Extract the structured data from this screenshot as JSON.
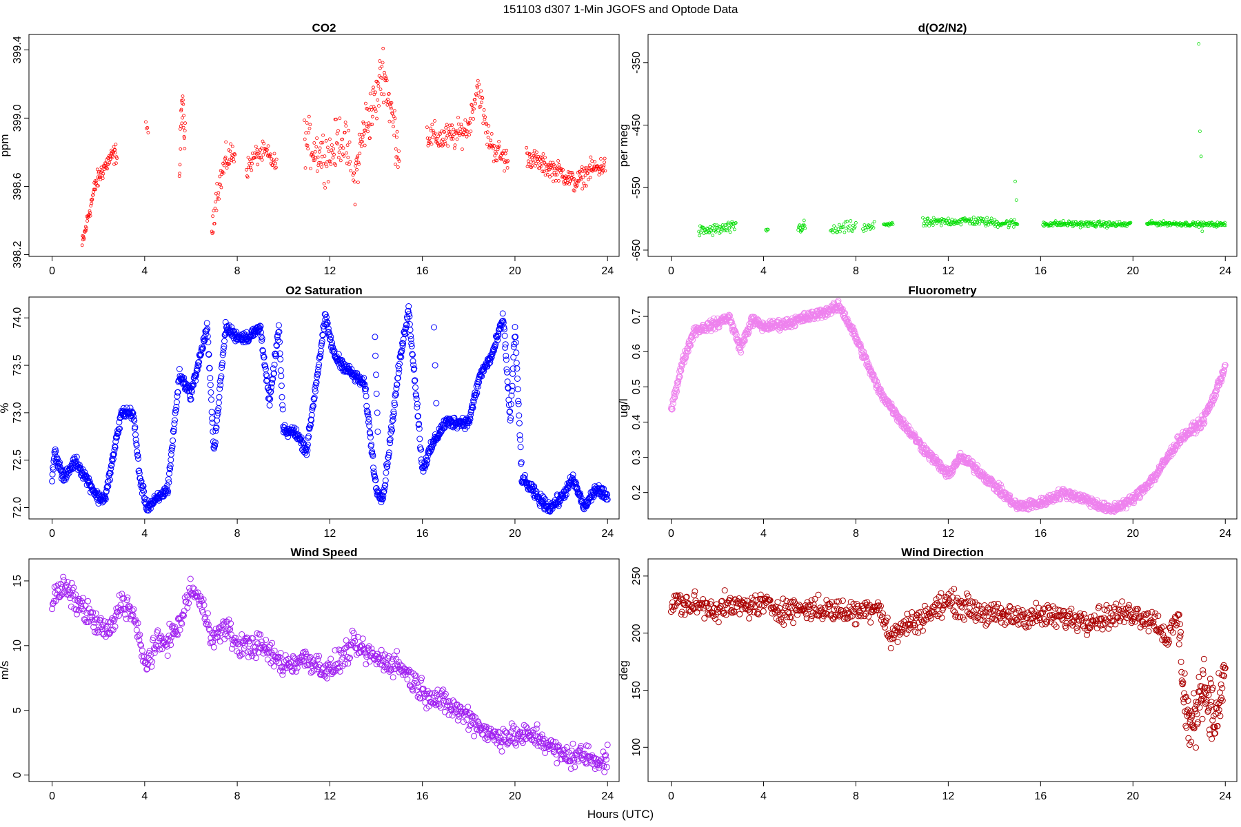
{
  "title": "151103   d307   1-Min  JGOFS and Optode Data",
  "xlabel": "Hours (UTC)",
  "chart_data": [
    {
      "type": "scatter",
      "title": "CO2",
      "ylabel": "ppm",
      "color": "#ff0000",
      "xlim": [
        -1,
        24.5
      ],
      "ylim": [
        398.19,
        399.49
      ],
      "xticks": [
        "0",
        "4",
        "8",
        "12",
        "16",
        "20",
        "24"
      ],
      "yticks": [
        "398.2",
        "398.6",
        "399.0",
        "399.4"
      ],
      "marker_size": 2,
      "segments": [
        {
          "x": [
            1.3,
            1.6,
            1.9,
            2.2,
            2.5,
            2.8
          ],
          "y": [
            398.25,
            398.45,
            398.62,
            398.7,
            398.76,
            398.8
          ],
          "n": 90,
          "jitter": 0.05
        },
        {
          "x": [
            4.05,
            4.15
          ],
          "y": [
            398.97,
            398.92
          ],
          "n": 4,
          "jitter": 0.03
        },
        {
          "x": [
            5.5,
            5.6,
            5.75
          ],
          "y": [
            398.65,
            399.1,
            398.85
          ],
          "n": 22,
          "jitter": 0.1
        },
        {
          "x": [
            6.9,
            7.1,
            7.5,
            7.9
          ],
          "y": [
            398.35,
            398.55,
            398.75,
            398.8
          ],
          "n": 50,
          "jitter": 0.07
        },
        {
          "x": [
            8.4,
            8.8,
            9.2,
            9.7
          ],
          "y": [
            398.7,
            398.78,
            398.8,
            398.72
          ],
          "n": 55,
          "jitter": 0.05
        },
        {
          "x": [
            10.9,
            11.5,
            12.0,
            12.5,
            12.9
          ],
          "y": [
            398.88,
            398.8,
            398.78,
            398.9,
            398.75
          ],
          "n": 90,
          "jitter": 0.12
        },
        {
          "x": [
            13.0,
            13.5,
            14.0,
            14.3,
            14.7,
            15.0
          ],
          "y": [
            398.6,
            398.95,
            399.1,
            399.3,
            399.0,
            398.8
          ],
          "n": 110,
          "jitter": 0.13
        },
        {
          "x": [
            16.2,
            16.8,
            17.5,
            18.0,
            18.4,
            18.8,
            19.2,
            19.7
          ],
          "y": [
            398.9,
            398.88,
            398.9,
            398.95,
            399.2,
            398.9,
            398.8,
            398.75
          ],
          "n": 160,
          "jitter": 0.07
        },
        {
          "x": [
            20.5,
            21.3,
            22.0,
            22.6,
            23.3,
            23.9
          ],
          "y": [
            398.78,
            398.72,
            398.68,
            398.62,
            398.7,
            398.72
          ],
          "n": 180,
          "jitter": 0.05
        }
      ]
    },
    {
      "type": "scatter",
      "title": "d(O2/N2)",
      "ylabel": "per meg",
      "color": "#00dd00",
      "xlim": [
        -1,
        24.5
      ],
      "ylim": [
        -660,
        -305
      ],
      "xticks": [
        "0",
        "4",
        "8",
        "12",
        "16",
        "20",
        "24"
      ],
      "yticks": [
        "-650",
        "-550",
        "-450",
        "-350"
      ],
      "marker_size": 2,
      "segments": [
        {
          "x": [
            1.2,
            1.8,
            2.4,
            2.8
          ],
          "y": [
            -620,
            -618,
            -615,
            -613
          ],
          "n": 60,
          "jitter": 8
        },
        {
          "x": [
            4.1,
            4.2
          ],
          "y": [
            -618,
            -617
          ],
          "n": 4,
          "jitter": 3
        },
        {
          "x": [
            5.5,
            5.8
          ],
          "y": [
            -615,
            -612
          ],
          "n": 15,
          "jitter": 8
        },
        {
          "x": [
            6.9,
            7.5,
            8.0
          ],
          "y": [
            -620,
            -615,
            -612
          ],
          "n": 30,
          "jitter": 8
        },
        {
          "x": [
            8.3,
            8.8
          ],
          "y": [
            -616,
            -613
          ],
          "n": 15,
          "jitter": 7
        },
        {
          "x": [
            9.2,
            9.6
          ],
          "y": [
            -608,
            -608
          ],
          "n": 15,
          "jitter": 4
        },
        {
          "x": [
            10.9,
            12.0,
            13.0,
            14.0,
            15.0
          ],
          "y": [
            -607,
            -604,
            -603,
            -606,
            -608
          ],
          "n": 150,
          "jitter": 6
        },
        {
          "x": [
            16.1,
            17.5,
            19.0,
            19.9
          ],
          "y": [
            -608,
            -608,
            -609,
            -609
          ],
          "n": 160,
          "jitter": 4
        },
        {
          "x": [
            20.6,
            22.0,
            23.0,
            24.0
          ],
          "y": [
            -607,
            -608,
            -609,
            -609
          ],
          "n": 150,
          "jitter": 3
        }
      ],
      "outliers": {
        "x": [
          14.9,
          14.95,
          22.85,
          22.9,
          22.95,
          23.0
        ],
        "y": [
          -540,
          -570,
          -320,
          -460,
          -500,
          -620
        ]
      }
    },
    {
      "type": "scatter",
      "title": "O2 Saturation",
      "ylabel": "%",
      "color": "#0000ff",
      "xlim": [
        -1,
        24.5
      ],
      "ylim": [
        71.88,
        74.22
      ],
      "xticks": [
        "0",
        "4",
        "8",
        "12",
        "16",
        "20",
        "24"
      ],
      "yticks": [
        "72.0",
        "72.5",
        "73.0",
        "73.5",
        "74.0"
      ],
      "marker_size": 4,
      "segments": [
        {
          "x": [
            0.0,
            0.1,
            0.5,
            1.0,
            1.5,
            2.0,
            2.3,
            3.0,
            3.5,
            3.8,
            4.1,
            4.6,
            5.0,
            5.5,
            6.0,
            6.7,
            7.0,
            7.5,
            8.0,
            8.5,
            9.0,
            9.4,
            9.8,
            10.0,
            10.5,
            11.0,
            11.8,
            12.2,
            13.0,
            13.5,
            14.0,
            14.3,
            14.6,
            15.0,
            15.4,
            15.8,
            16.0,
            16.5,
            17.0,
            17.5,
            18.0,
            18.5,
            19.0,
            19.5,
            19.8,
            20.0,
            20.3,
            20.7,
            21.0,
            21.5,
            22.0,
            22.5,
            23.0,
            23.5,
            24.0
          ],
          "y": [
            72.3,
            72.6,
            72.3,
            72.5,
            72.3,
            72.1,
            72.1,
            73.0,
            73.0,
            72.3,
            72.0,
            72.1,
            72.2,
            73.4,
            73.2,
            73.9,
            72.6,
            73.9,
            73.8,
            73.8,
            73.9,
            73.1,
            73.9,
            72.8,
            72.8,
            72.6,
            74.0,
            73.6,
            73.4,
            73.3,
            72.2,
            72.1,
            72.7,
            73.5,
            74.1,
            73.0,
            72.4,
            72.7,
            72.9,
            72.9,
            72.9,
            73.4,
            73.6,
            74.0,
            72.9,
            73.9,
            72.3,
            72.2,
            72.1,
            72.0,
            72.1,
            72.3,
            72.0,
            72.2,
            72.1
          ],
          "n": 1400,
          "jitter": 0.05
        }
      ],
      "outliers": {
        "x": [
          13.95,
          13.97,
          14.0,
          14.02,
          14.05,
          14.07,
          16.5,
          16.55,
          16.6
        ],
        "y": [
          73.8,
          73.6,
          73.4,
          73.2,
          73.0,
          72.8,
          73.9,
          73.5,
          73.1
        ]
      }
    },
    {
      "type": "scatter",
      "title": "Fluorometry",
      "ylabel": "ug/l",
      "color": "#ee82ee",
      "xlim": [
        -1,
        24.5
      ],
      "ylim": [
        0.125,
        0.755
      ],
      "xticks": [
        "0",
        "4",
        "8",
        "12",
        "16",
        "20",
        "24"
      ],
      "yticks": [
        "0.2",
        "0.3",
        "0.4",
        "0.5",
        "0.6",
        "0.7"
      ],
      "marker_size": 4,
      "segments": [
        {
          "x": [
            0.0,
            0.5,
            1.0,
            1.5,
            2.0,
            2.5,
            3.0,
            3.5,
            4.0,
            5.0,
            6.0,
            7.0,
            7.3,
            8.0,
            9.0,
            10.0,
            11.0,
            12.0,
            12.5,
            13.0,
            14.0,
            15.0,
            16.0,
            17.0,
            18.0,
            19.0,
            20.0,
            21.0,
            22.0,
            23.0,
            23.5,
            24.0
          ],
          "y": [
            0.44,
            0.57,
            0.66,
            0.67,
            0.68,
            0.7,
            0.61,
            0.69,
            0.67,
            0.68,
            0.7,
            0.72,
            0.73,
            0.64,
            0.49,
            0.4,
            0.32,
            0.25,
            0.3,
            0.28,
            0.22,
            0.16,
            0.17,
            0.2,
            0.18,
            0.15,
            0.18,
            0.25,
            0.35,
            0.4,
            0.47,
            0.56
          ],
          "n": 1400,
          "jitter": 0.012
        }
      ]
    },
    {
      "type": "scatter",
      "title": "Wind Speed",
      "ylabel": "m/s",
      "color": "#a020f0",
      "xlim": [
        -1,
        24.5
      ],
      "ylim": [
        -0.5,
        16.7
      ],
      "xticks": [
        "0",
        "4",
        "8",
        "12",
        "16",
        "20",
        "24"
      ],
      "yticks": [
        "0",
        "5",
        "10",
        "15"
      ],
      "marker_size": 4,
      "segments": [
        {
          "x": [
            0.0,
            0.5,
            1.0,
            1.5,
            2.0,
            2.5,
            3.0,
            3.5,
            4.0,
            4.5,
            5.0,
            5.5,
            6.0,
            6.5,
            7.0,
            7.5,
            8.0,
            9.0,
            10.0,
            11.0,
            12.0,
            13.0,
            14.0,
            15.0,
            16.0,
            17.0,
            18.0,
            19.0,
            20.0,
            21.0,
            22.0,
            23.0,
            24.0
          ],
          "y": [
            13.5,
            14.5,
            13.5,
            12.5,
            11.5,
            11.0,
            13.5,
            12.5,
            8.5,
            10.0,
            10.5,
            11.5,
            14.5,
            13.0,
            10.5,
            11.5,
            10.0,
            10.0,
            8.5,
            9.0,
            8.0,
            10.0,
            9.0,
            8.5,
            6.5,
            5.5,
            4.5,
            3.0,
            3.0,
            3.0,
            1.5,
            1.5,
            1.0
          ],
          "n": 900,
          "jitter": 0.8
        }
      ]
    },
    {
      "type": "scatter",
      "title": "Wind Direction",
      "ylabel": "deg",
      "color": "#aa0000",
      "xlim": [
        -1,
        24.5
      ],
      "ylim": [
        70,
        265
      ],
      "xticks": [
        "0",
        "4",
        "8",
        "12",
        "16",
        "20",
        "24"
      ],
      "yticks": [
        "100",
        "150",
        "200",
        "250"
      ],
      "marker_size": 4,
      "segments": [
        {
          "x": [
            0.0,
            2.0,
            4.0,
            5.0,
            6.0,
            8.0,
            9.0,
            9.5,
            10.0,
            11.0,
            12.0,
            14.0,
            16.0,
            18.0,
            20.0,
            21.0,
            21.5,
            22.0
          ],
          "y": [
            227,
            222,
            225,
            220,
            222,
            218,
            225,
            195,
            205,
            215,
            228,
            215,
            215,
            212,
            218,
            210,
            195,
            215
          ],
          "n": 750,
          "jitter": 9
        },
        {
          "x": [
            22.0,
            22.3,
            22.6,
            23.0,
            23.3,
            23.6,
            24.0
          ],
          "y": [
            200,
            130,
            115,
            160,
            140,
            120,
            170
          ],
          "n": 120,
          "jitter": 22
        }
      ]
    }
  ]
}
